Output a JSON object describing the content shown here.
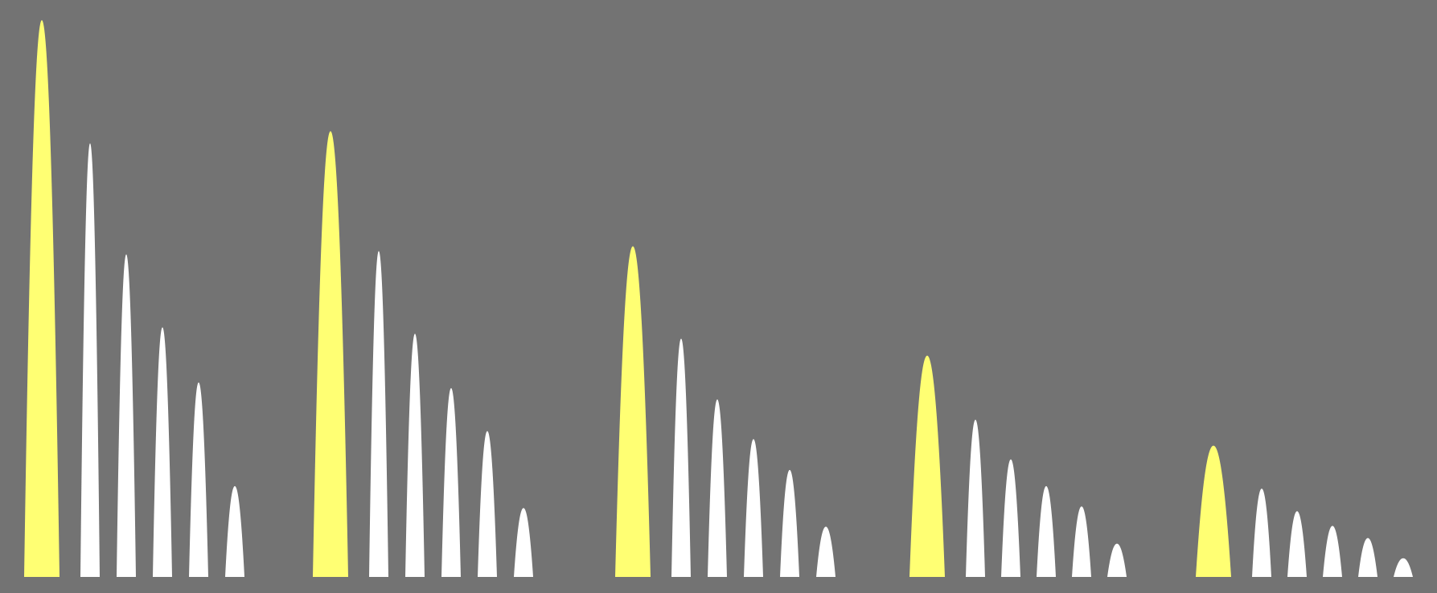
{
  "chart_data": {
    "type": "bar",
    "mark_shape": "spike",
    "background_color": "#737373",
    "colors": {
      "highlight": "#ffff73",
      "normal": "#ffffff"
    },
    "ylim": [
      0,
      700
    ],
    "grid": false,
    "groups": [
      {
        "values": [
          687,
          535,
          398,
          308,
          240,
          112
        ],
        "highlight_index": 0
      },
      {
        "values": [
          550,
          402,
          300,
          233,
          180,
          85
        ],
        "highlight_index": 0
      },
      {
        "values": [
          408,
          294,
          219,
          170,
          132,
          62
        ],
        "highlight_index": 0
      },
      {
        "values": [
          273,
          194,
          145,
          112,
          87,
          41
        ],
        "highlight_index": 0
      },
      {
        "values": [
          162,
          109,
          81,
          63,
          48,
          23
        ],
        "highlight_index": 0
      }
    ]
  }
}
